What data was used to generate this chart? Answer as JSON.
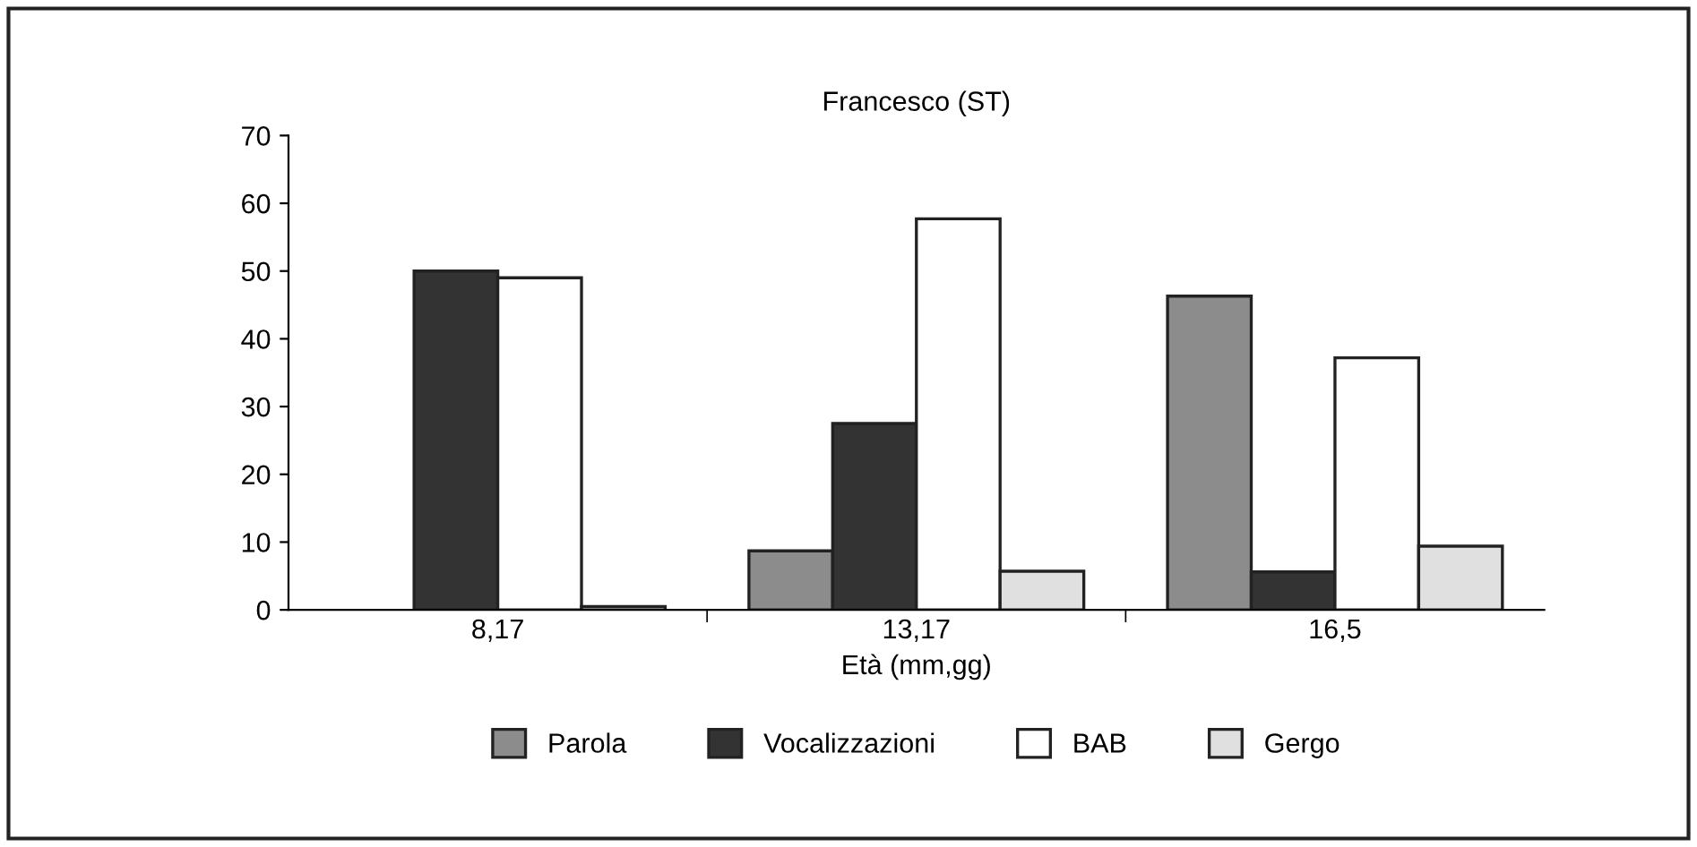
{
  "chart_data": {
    "type": "bar",
    "title": "Francesco (ST)",
    "xlabel": "Età (mm,gg)",
    "categories": [
      "8,17",
      "13,17",
      "16,5"
    ],
    "series": [
      {
        "name": "Parola",
        "color": "#8c8c8c",
        "values": [
          null,
          8.7,
          46.3
        ]
      },
      {
        "name": "Vocalizzazioni",
        "color": "#333333",
        "values": [
          50,
          27.5,
          5.6
        ]
      },
      {
        "name": "BAB",
        "color": "#ffffff",
        "values": [
          49,
          57.7,
          37.2
        ]
      },
      {
        "name": "Gergo",
        "color": "#e0e0e0",
        "values": [
          0.5,
          5.7,
          9.4
        ]
      }
    ],
    "ylim": [
      0,
      70
    ],
    "yticks": [
      0,
      10,
      20,
      30,
      40,
      50,
      60,
      70
    ],
    "grid": false,
    "legend": "bottom"
  }
}
